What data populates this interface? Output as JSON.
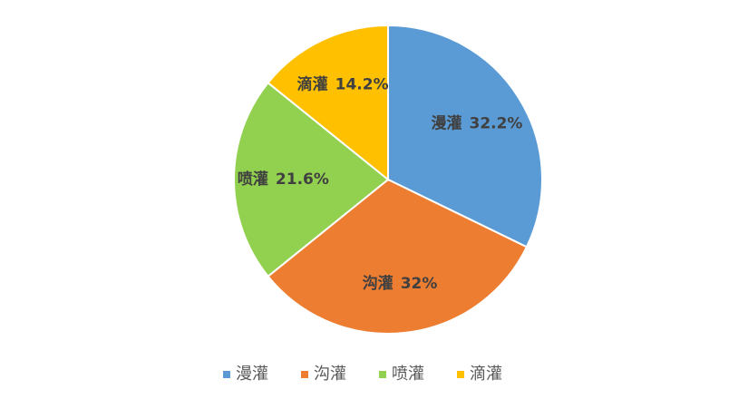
{
  "chart_data": {
    "type": "pie",
    "categories": [
      "漫灌",
      "沟灌",
      "喷灌",
      "滴灌"
    ],
    "values": [
      32.2,
      32,
      21.6,
      14.2
    ],
    "value_labels": [
      "32.2%",
      "32%",
      "21.6%",
      "14.2%"
    ],
    "colors": [
      "#5b9bd5",
      "#ed7d31",
      "#92d050",
      "#ffc000"
    ],
    "legend": "bottom"
  }
}
